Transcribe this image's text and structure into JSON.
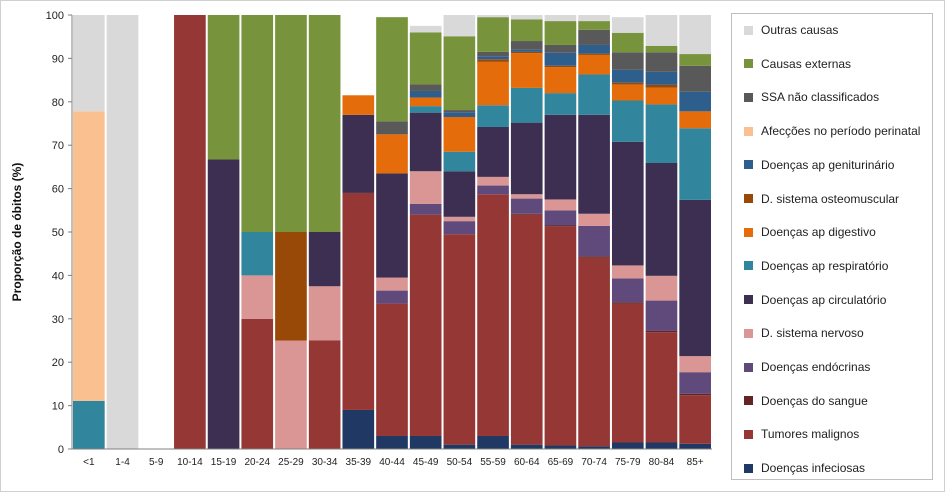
{
  "chart_data": {
    "type": "bar",
    "stacked": true,
    "title": "",
    "xlabel": "",
    "ylabel": "Proporção de óbitos (%)",
    "ylim": [
      0,
      100
    ],
    "yticks": [
      0,
      10,
      20,
      30,
      40,
      50,
      60,
      70,
      80,
      90,
      100
    ],
    "grid": false,
    "legend_position": "right",
    "categories": [
      "<1",
      "1-4",
      "5-9",
      "10-14",
      "15-19",
      "20-24",
      "25-29",
      "30-34",
      "35-39",
      "40-44",
      "45-49",
      "50-54",
      "55-59",
      "60-64",
      "65-69",
      "70-74",
      "75-79",
      "80-84",
      "85+"
    ],
    "series": [
      {
        "name": "Doenças infeciosas",
        "color": "#1f3864",
        "values": [
          0,
          0,
          0,
          0,
          0,
          0,
          0,
          0,
          9,
          3,
          3,
          1,
          3,
          1,
          0.8,
          0.6,
          1.5,
          1.5,
          1.2
        ]
      },
      {
        "name": "Tumores malignos",
        "color": "#953735",
        "values": [
          0,
          0,
          0,
          100,
          0,
          30,
          0,
          25,
          50,
          30.5,
          51,
          48.5,
          55.7,
          53,
          50.5,
          43.5,
          32,
          25.4,
          11.2
        ]
      },
      {
        "name": "Doenças do sangue",
        "color": "#632523",
        "values": [
          0,
          0,
          0,
          0,
          0,
          0,
          0,
          0,
          0,
          0,
          0,
          0,
          0,
          0.2,
          0.2,
          0.3,
          0.3,
          0.3,
          0.3
        ]
      },
      {
        "name": "Doenças endócrinas",
        "color": "#604a7b",
        "values": [
          0,
          0,
          0,
          0,
          0,
          0,
          0,
          0,
          0,
          3,
          2.5,
          3,
          2,
          3.5,
          3.5,
          7,
          5.5,
          7,
          5
        ]
      },
      {
        "name": "D. sistema nervoso",
        "color": "#d99694",
        "values": [
          0,
          0,
          0,
          0,
          0,
          10,
          25,
          12.5,
          0,
          3,
          7.5,
          1,
          2,
          1,
          2.5,
          2.8,
          3,
          5.7,
          3.7
        ]
      },
      {
        "name": "Doenças ap circulatório",
        "color": "#3d2f52",
        "values": [
          0,
          0,
          0,
          0,
          66.7,
          0,
          0,
          12.5,
          18,
          24,
          13.5,
          10.5,
          11.5,
          16.5,
          19.5,
          22.8,
          28.5,
          26,
          36
        ]
      },
      {
        "name": "Doenças ap respiratório",
        "color": "#31859c",
        "values": [
          11.1,
          0,
          0,
          0,
          0,
          10,
          0,
          0,
          0,
          0,
          1.5,
          4.5,
          5,
          8,
          5,
          9.3,
          9.5,
          13.5,
          16.5
        ]
      },
      {
        "name": "Doenças ap digestivo",
        "color": "#e46c0a",
        "values": [
          0,
          0,
          0,
          0,
          0,
          0,
          0,
          0,
          4.5,
          9,
          2,
          8,
          10,
          8,
          6,
          4.5,
          3.7,
          3.9,
          3.9
        ]
      },
      {
        "name": "D. sistema osteomuscular",
        "color": "#984807",
        "values": [
          0,
          0,
          0,
          0,
          0,
          0,
          25,
          0,
          0,
          0,
          0,
          0,
          0.6,
          0.3,
          0.3,
          0.3,
          0.4,
          0.6,
          0
        ]
      },
      {
        "name": "Doenças ap geniturinário",
        "color": "#2e5e8c",
        "values": [
          0,
          0,
          0,
          0,
          0,
          0,
          0,
          0,
          0,
          0,
          1.5,
          1.1,
          0.7,
          0.5,
          3,
          2,
          3,
          3,
          4.5
        ]
      },
      {
        "name": "SSA não classificados",
        "color": "#595959",
        "values": [
          0,
          0,
          0,
          0,
          0,
          0,
          0,
          0,
          0,
          3,
          1.5,
          0.5,
          1,
          2,
          1.8,
          3.5,
          4,
          4.5,
          6
        ]
      },
      {
        "name": "Afecções no período perinatal",
        "color": "#fac090",
        "values": [
          66.7,
          0,
          0,
          0,
          0,
          0,
          0,
          0,
          0,
          0,
          0,
          0,
          0,
          0,
          0,
          0,
          0,
          0,
          0
        ]
      },
      {
        "name": "Causas externas",
        "color": "#77933c",
        "values": [
          0,
          0,
          0,
          0,
          33.3,
          50,
          50,
          50,
          0,
          24,
          12,
          17,
          8,
          5,
          5.5,
          2,
          4.5,
          1.5,
          2.7
        ]
      },
      {
        "name": "Outras causas",
        "color": "#d9d9d9",
        "values": [
          22.2,
          100,
          0,
          0,
          0,
          0,
          0,
          0,
          0,
          0,
          1.5,
          4.9,
          0.5,
          1,
          1.4,
          1.4,
          3.6,
          7.1,
          9
        ]
      }
    ],
    "legend_order": [
      "Outras causas",
      "Causas externas",
      "SSA não classificados",
      "Afecções no período perinatal",
      "Doenças ap geniturinário",
      "D. sistema osteomuscular",
      "Doenças ap digestivo",
      "Doenças ap respiratório",
      "Doenças ap circulatório",
      "D. sistema nervoso",
      "Doenças endócrinas",
      "Doenças do sangue",
      "Tumores malignos",
      "Doenças infeciosas"
    ]
  }
}
